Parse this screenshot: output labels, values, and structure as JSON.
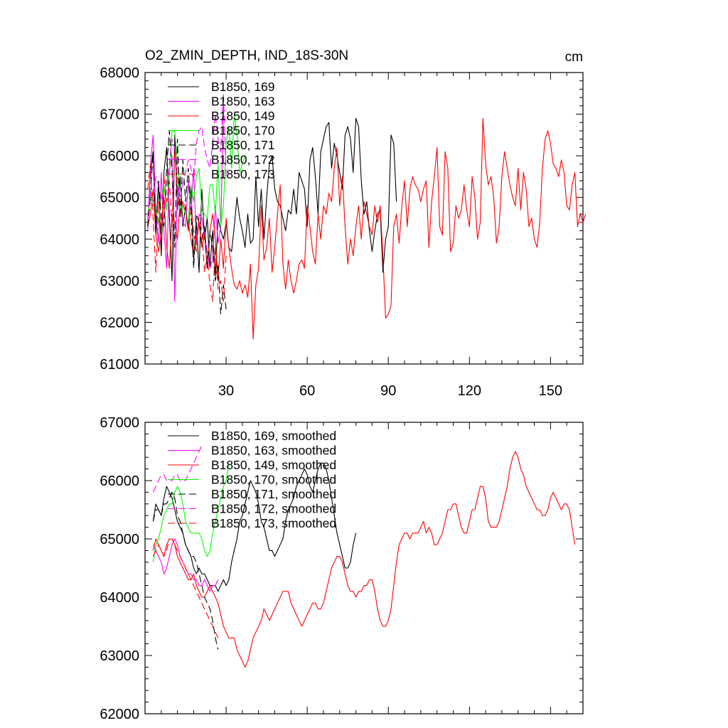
{
  "page": {
    "title": "O2_ZMIN_DEPTH, IND_18S-30N",
    "units": "cm"
  },
  "chart_data": [
    {
      "type": "line",
      "title": "O2_ZMIN_DEPTH, IND_18S-30N",
      "units": "cm",
      "xlim": [
        0,
        162
      ],
      "ylim": [
        61000,
        68000
      ],
      "xticks": [
        30,
        60,
        90,
        120,
        150
      ],
      "yticks": [
        61000,
        62000,
        63000,
        64000,
        65000,
        66000,
        67000,
        68000
      ],
      "series": [
        {
          "name": "B1850, 169",
          "color": "#000000",
          "dash": "solid",
          "x0": 1,
          "values": [
            64300,
            65600,
            66100,
            64200,
            65400,
            63600,
            65600,
            66200,
            64600,
            63000,
            66500,
            64700,
            65500,
            64300,
            64800,
            64200,
            65300,
            63500,
            64400,
            63200,
            65200,
            64000,
            64500,
            63300,
            64200,
            63100,
            64500,
            64200,
            64000,
            64400,
            63800,
            63700,
            64300,
            65000,
            64500,
            64200,
            63800,
            64600,
            63900,
            64000,
            65500,
            64300,
            65200,
            64000,
            65000,
            65800,
            66000,
            65200,
            64900,
            64800,
            64500,
            64200,
            64700,
            64600,
            65200,
            64600,
            65600,
            65400,
            65200,
            64300,
            65900,
            66200,
            65500,
            64600,
            66100,
            66400,
            66700,
            66800,
            65700,
            66300,
            66000,
            65600,
            65200,
            66500,
            66700,
            66400,
            65600,
            66900,
            66700,
            65400,
            64600,
            64900,
            64200,
            63700,
            64200,
            64600,
            64700,
            63200,
            64000,
            64300,
            66500,
            66300,
            64900
          ]
        },
        {
          "name": "B1850, 163",
          "color": "#ff00ff",
          "dash": "solid",
          "x0": 1,
          "values": [
            64200,
            65800,
            66500,
            64600,
            63900,
            65600,
            64200,
            63300,
            65600,
            66000,
            62500,
            65300,
            64800,
            64400,
            64300,
            65400,
            64600,
            65700,
            63900,
            64600,
            64500,
            64100,
            63700,
            63300,
            63500,
            64800,
            63900,
            64300,
            67200
          ]
        },
        {
          "name": "B1850, 149",
          "color": "#ff0000",
          "dash": "solid",
          "x0": 1,
          "values": [
            64300,
            64600,
            65200,
            64100,
            63700,
            64200,
            65000,
            63800,
            63300,
            64600,
            64400,
            64000,
            64900,
            64900,
            64600,
            64400,
            64000,
            63600,
            64000,
            64400,
            63800,
            64100,
            63300,
            64200,
            64600,
            64000,
            63000,
            64000,
            63300,
            64500,
            63800,
            63300,
            62900,
            62800,
            63000,
            62700,
            62900,
            62600,
            63400,
            61600,
            62900,
            63300,
            64800,
            63500,
            63800,
            64500,
            63200,
            63800,
            64600,
            65300,
            63400,
            62800,
            63500,
            63000,
            62700,
            63000,
            63400,
            63500,
            63300,
            64800,
            64300,
            63700,
            63400,
            64600,
            64000,
            64800,
            64600,
            65100,
            64900,
            65700,
            66200,
            64800,
            65500,
            64300,
            63400,
            64000,
            63600,
            64300,
            64800,
            64000,
            64900,
            64600,
            64300,
            64100,
            64800,
            64400,
            64800,
            63600,
            62100,
            62200,
            62400,
            64300,
            64600,
            63900,
            64800,
            65400,
            64300,
            65200,
            65500,
            65300,
            65200,
            64900,
            65200,
            65400,
            63800,
            64900,
            65500,
            66200,
            64300,
            64100,
            66100,
            65700,
            63700,
            63900,
            64800,
            64500,
            64700,
            65300,
            64700,
            64300,
            65500,
            65000,
            64000,
            64400,
            66900,
            65800,
            65300,
            65500,
            65000,
            63900,
            64300,
            65500,
            66100,
            65700,
            65300,
            65000,
            64800,
            65700,
            64700,
            65600,
            65200,
            64300,
            64500,
            64000,
            63800,
            64400,
            65700,
            66400,
            66600,
            66300,
            65800,
            65700,
            65500,
            65900,
            65600,
            64800,
            64700,
            65300,
            65600,
            64300,
            64600,
            64400,
            64600
          ]
        },
        {
          "name": "B1850, 170",
          "color": "#00ff00",
          "dash": "solid",
          "x0": 1,
          "values": [
            64600,
            65000,
            64800,
            64700,
            64400,
            65000,
            65300,
            64700,
            65500,
            66600,
            66600,
            65800,
            64700,
            64800,
            64600,
            64400,
            65300,
            64900,
            65500,
            65700,
            64700,
            64600,
            64500,
            65300,
            65300,
            64600,
            65800,
            64300,
            64800,
            66300,
            66700,
            65700,
            67000,
            66500,
            65600,
            65800,
            66000
          ]
        },
        {
          "name": "B1850, 171",
          "color": "#000000",
          "dash": "10,5",
          "x0": 1,
          "values": [
            64300,
            65000,
            66100,
            64100,
            65400,
            64500,
            64300,
            65700,
            66600,
            65700,
            63800,
            66400,
            64500,
            65900,
            64900,
            65700,
            64700,
            63300,
            64600,
            64400,
            63900,
            64300,
            63300,
            64200,
            63800,
            63000,
            63400,
            62200,
            62900,
            62300
          ]
        },
        {
          "name": "B1850, 172",
          "color": "#ff00ff",
          "dash": "10,5",
          "x0": 1,
          "values": [
            64500,
            65100,
            64900,
            65500,
            65300,
            65000,
            64700,
            65200,
            65800,
            66400,
            66200,
            65400,
            65000,
            65300,
            65600,
            65900,
            65700,
            65400,
            66300,
            66600,
            66700,
            66200,
            65900,
            65700,
            66300,
            67000,
            66400,
            66100,
            67500,
            65500
          ]
        },
        {
          "name": "B1850, 173",
          "color": "#ff0000",
          "dash": "10,5",
          "x0": 1,
          "values": [
            65200,
            65800,
            64500,
            63200,
            64900,
            64200,
            65500,
            64900,
            65400,
            64300,
            66100,
            65100,
            64600,
            64900,
            64800,
            64200,
            64700,
            64200,
            63700,
            64500,
            64200,
            63200,
            63600,
            62900,
            62500,
            63800,
            62800,
            63000,
            62500,
            63600
          ]
        }
      ]
    },
    {
      "type": "line",
      "xlim": [
        0,
        162
      ],
      "ylim": [
        62000,
        67000
      ],
      "xticks": [
        30,
        60,
        90,
        120,
        150
      ],
      "yticks": [
        62000,
        63000,
        64000,
        65000,
        66000,
        67000
      ],
      "series": [
        {
          "name": "B1850, 169, smoothed",
          "color": "#000000",
          "dash": "solid",
          "x0": 3,
          "values": [
            65300,
            65600,
            65500,
            65400,
            65700,
            65900,
            65800,
            65700,
            65500,
            65300,
            65200,
            65100,
            64900,
            64800,
            64700,
            64500,
            64400,
            64500,
            64400,
            64400,
            64300,
            64200,
            64200,
            64200,
            64100,
            64200,
            64300,
            64200,
            64300,
            64600,
            64800,
            65000,
            65300,
            65400,
            65600,
            65800,
            66000,
            65900,
            65800,
            65600,
            65300,
            65200,
            65000,
            64800,
            64800,
            64700,
            64800,
            64900,
            65000,
            65300,
            65500,
            65600,
            65700,
            65900,
            66000,
            66100,
            66200,
            66100,
            65900,
            65800,
            66000,
            66200,
            66300,
            66300,
            66200,
            66000,
            65700,
            65400,
            65100,
            64900,
            64700,
            64500,
            64500,
            64600,
            64900,
            65100
          ]
        },
        {
          "name": "B1850, 163, smoothed",
          "color": "#ff00ff",
          "dash": "solid",
          "x0": 3,
          "values": [
            64900,
            64800,
            64700,
            64600,
            64400,
            64500,
            64700,
            64900,
            65000,
            64900,
            64700,
            64600,
            64500,
            64400,
            64400,
            64300,
            64300,
            64200,
            64200,
            64300,
            64200,
            64100,
            64200,
            64200,
            64300
          ]
        },
        {
          "name": "B1850, 149, smoothed",
          "color": "#ff0000",
          "dash": "solid",
          "x0": 3,
          "values": [
            64800,
            65000,
            64900,
            64800,
            64700,
            64900,
            65000,
            65000,
            64900,
            64700,
            64600,
            64500,
            64400,
            64300,
            64300,
            64400,
            64200,
            64100,
            64000,
            64000,
            64100,
            64200,
            64100,
            64000,
            63900,
            63700,
            63500,
            63400,
            63300,
            63300,
            63300,
            63100,
            63000,
            62900,
            62800,
            62900,
            63100,
            63300,
            63400,
            63500,
            63600,
            63800,
            63700,
            63600,
            63700,
            63800,
            63900,
            64000,
            64100,
            64100,
            64100,
            63900,
            63800,
            63700,
            63600,
            63500,
            63600,
            63700,
            63800,
            63900,
            63900,
            63800,
            63800,
            63900,
            64100,
            64300,
            64500,
            64600,
            64700,
            64700,
            64600,
            64400,
            64200,
            64100,
            64100,
            64000,
            64100,
            64100,
            64200,
            64200,
            64300,
            64300,
            64100,
            63800,
            63600,
            63500,
            63500,
            63600,
            63800,
            64200,
            64600,
            64900,
            65000,
            65100,
            65100,
            65000,
            65100,
            65100,
            65100,
            65200,
            65300,
            65100,
            65200,
            65100,
            64900,
            64900,
            65000,
            65100,
            65300,
            65500,
            65500,
            65600,
            65600,
            65400,
            65200,
            65100,
            65100,
            65300,
            65500,
            65500,
            65700,
            65900,
            65900,
            65700,
            65300,
            65200,
            65200,
            65200,
            65300,
            65500,
            65700,
            65900,
            66200,
            66400,
            66500,
            66400,
            66200,
            66100,
            65900,
            65800,
            65700,
            65600,
            65500,
            65500,
            65400,
            65400,
            65500,
            65700,
            65800,
            65700,
            65600,
            65500,
            65600,
            65600,
            65500,
            65200,
            64900
          ]
        },
        {
          "name": "B1850, 170, smoothed",
          "color": "#00ff00",
          "dash": "solid",
          "x0": 3,
          "values": [
            64600,
            64900,
            65000,
            65200,
            65400,
            65500,
            65600,
            65600,
            65800,
            65900,
            65800,
            65600,
            65300,
            65200,
            65100,
            65100,
            65100,
            65100,
            65000,
            64800,
            64700,
            64800,
            65100,
            65300,
            65500,
            65700,
            65900,
            66000,
            66300
          ]
        },
        {
          "name": "B1850, 171, smoothed",
          "color": "#000000",
          "dash": "10,5",
          "x0": 3,
          "values": [
            65300,
            65500,
            65500,
            65400,
            65600,
            65600,
            65700,
            65800,
            65700,
            65400,
            65300,
            65100,
            64900,
            64800,
            64700,
            64700,
            64600,
            64400,
            64200,
            64000,
            63900,
            63800,
            63600,
            63300,
            63100
          ]
        },
        {
          "name": "B1850, 172, smoothed",
          "color": "#ff00ff",
          "dash": "10,5",
          "x0": 3,
          "values": [
            65800,
            65900,
            66000,
            66100,
            66100,
            66000,
            66000,
            66000,
            66100,
            66100,
            66000,
            66000,
            66000,
            66100,
            66200,
            66300,
            66400,
            66500,
            66600,
            66600
          ]
        },
        {
          "name": "B1850, 173, smoothed",
          "color": "#ff0000",
          "dash": "10,5",
          "x0": 3,
          "values": [
            64700,
            64800,
            64900,
            64800,
            64700,
            64800,
            65000,
            65000,
            64900,
            64800,
            64700,
            64600,
            64500,
            64400,
            64300,
            64200,
            64100,
            64000,
            63900,
            63800,
            63700,
            63600,
            63500,
            63400,
            63300
          ]
        }
      ]
    }
  ]
}
